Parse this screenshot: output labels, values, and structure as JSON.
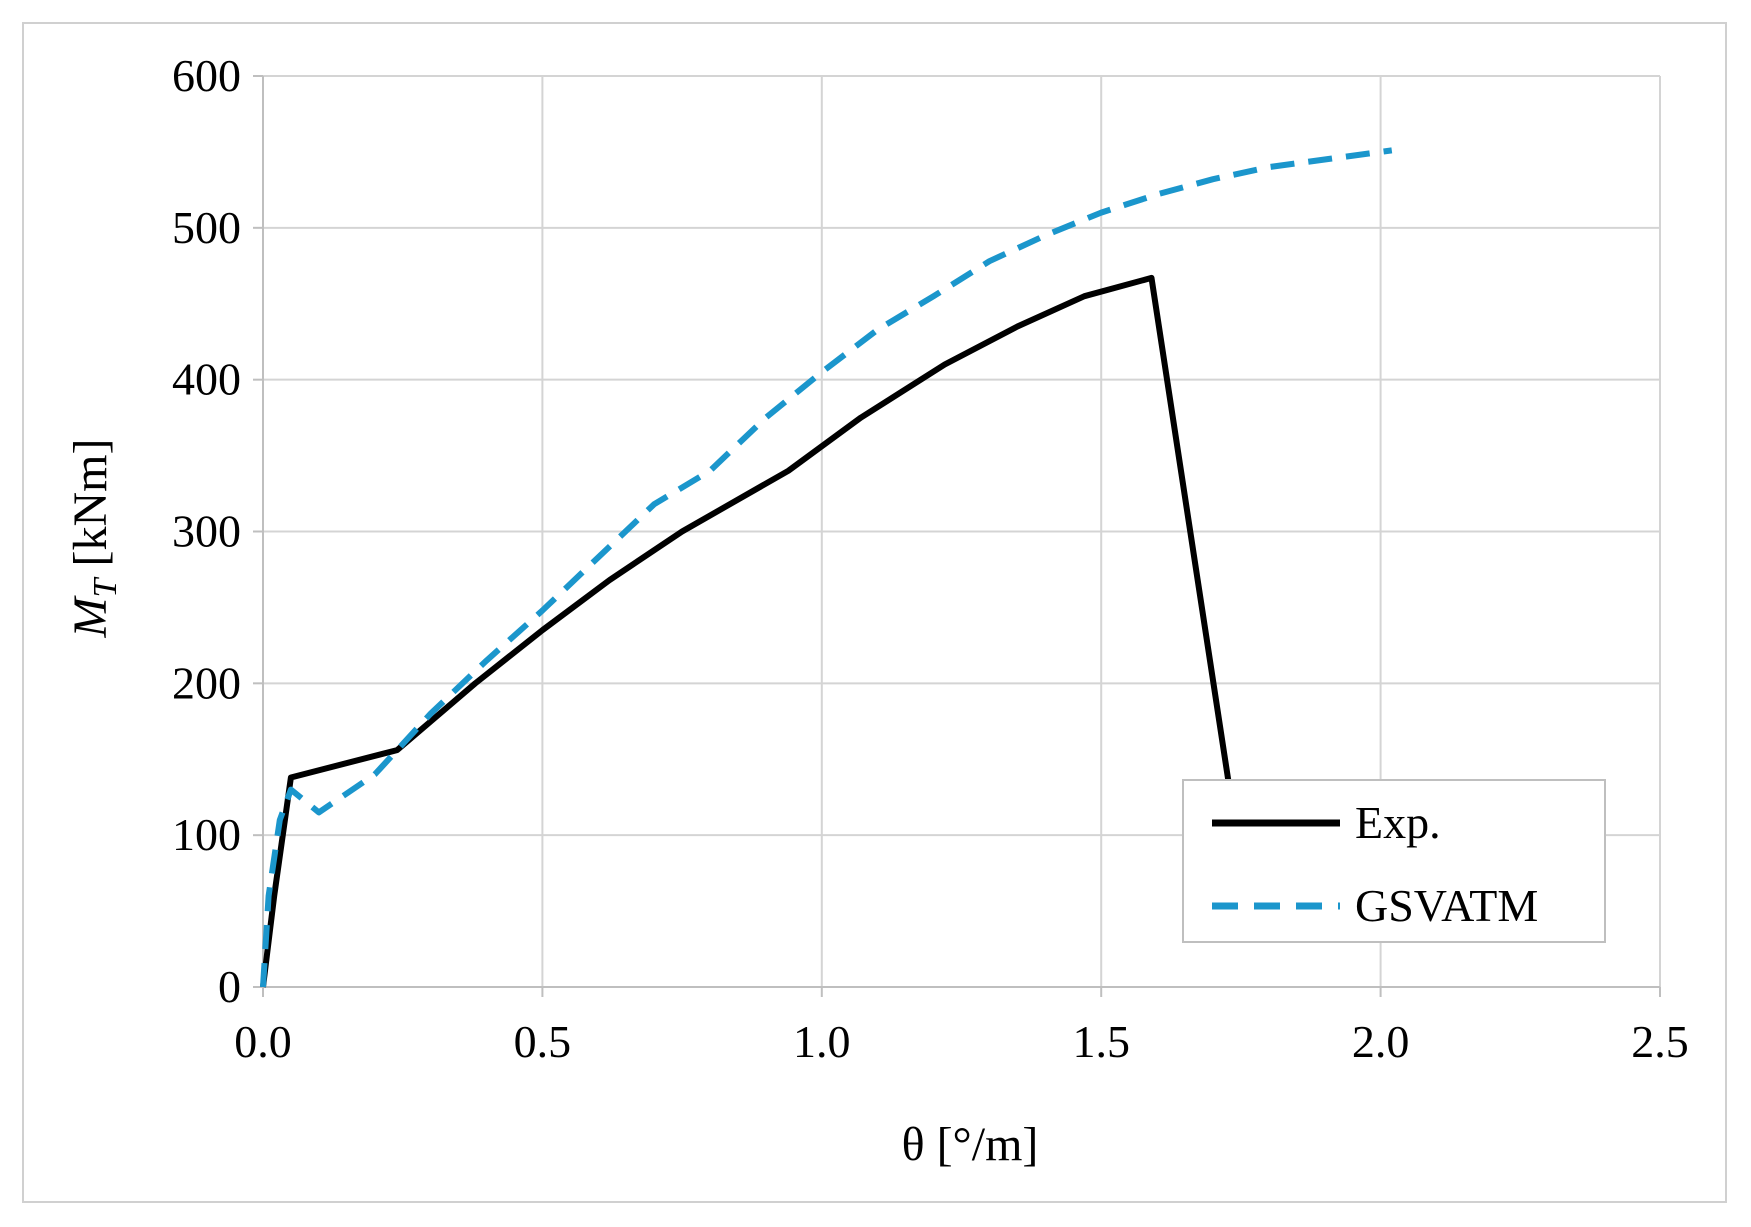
{
  "chart_data": {
    "type": "line",
    "title": "",
    "xlabel": "θ [°/m]",
    "ylabel": {
      "symbol": "M",
      "subscript": "T",
      "unit": " [kNm]"
    },
    "xlim": [
      0,
      2.5
    ],
    "ylim": [
      0,
      600
    ],
    "x_ticks": [
      0.0,
      0.5,
      1.0,
      1.5,
      2.0,
      2.5
    ],
    "x_tick_labels": [
      "0.0",
      "0.5",
      "1.0",
      "1.5",
      "2.0",
      "2.5"
    ],
    "y_ticks": [
      0,
      100,
      200,
      300,
      400,
      500,
      600
    ],
    "y_tick_labels": [
      "0",
      "100",
      "200",
      "300",
      "400",
      "500",
      "600"
    ],
    "grid": true,
    "legend_position": "bottom-right",
    "series": [
      {
        "name": "Exp.",
        "color": "#000000",
        "style": "solid",
        "x": [
          0.0,
          0.02,
          0.05,
          0.24,
          0.38,
          0.5,
          0.62,
          0.75,
          0.94,
          1.07,
          1.22,
          1.35,
          1.47,
          1.59,
          1.73
        ],
        "y": [
          0,
          60,
          138,
          156,
          200,
          235,
          268,
          300,
          340,
          375,
          410,
          435,
          455,
          467,
          130
        ]
      },
      {
        "name": "GSVATM",
        "color": "#1b96cc",
        "style": "dashed",
        "x": [
          0.0,
          0.01,
          0.03,
          0.05,
          0.1,
          0.2,
          0.3,
          0.4,
          0.5,
          0.6,
          0.7,
          0.8,
          0.9,
          1.0,
          1.1,
          1.2,
          1.3,
          1.4,
          1.5,
          1.6,
          1.7,
          1.8,
          1.9,
          2.0,
          2.02
        ],
        "y": [
          0,
          60,
          110,
          130,
          115,
          140,
          180,
          215,
          248,
          283,
          318,
          340,
          375,
          405,
          433,
          455,
          478,
          495,
          510,
          522,
          532,
          540,
          545,
          550,
          551
        ]
      }
    ]
  }
}
